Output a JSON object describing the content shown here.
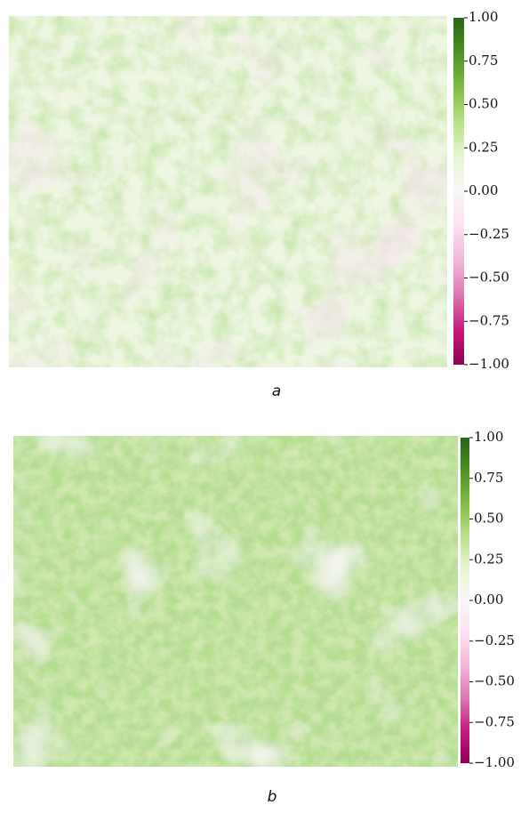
{
  "chart_data": [
    {
      "type": "heatmap",
      "caption": "a",
      "ylim": [
        -1,
        1
      ],
      "yticks": [
        {
          "value": -1,
          "label": "−1.00"
        },
        {
          "value": -0.75,
          "label": "−0.75"
        },
        {
          "value": -0.5,
          "label": "−0.50"
        },
        {
          "value": -0.25,
          "label": "−0.25"
        },
        {
          "value": 0,
          "label": "0.00"
        },
        {
          "value": 0.25,
          "label": "0.25"
        },
        {
          "value": 0.5,
          "label": "0.50"
        },
        {
          "value": 0.75,
          "label": "0.75"
        },
        {
          "value": 1,
          "label": "1.00"
        }
      ],
      "colormap": [
        "#8e0152",
        "#c51b7d",
        "#de77ae",
        "#f1b6da",
        "#fde0ef",
        "#f7f7f7",
        "#e6f5d0",
        "#b8e186",
        "#7fbc41",
        "#4d9221",
        "#276419"
      ]
    },
    {
      "type": "heatmap",
      "caption": "b",
      "ylim": [
        -1,
        1
      ],
      "yticks": [
        {
          "value": -1,
          "label": "−1.00"
        },
        {
          "value": -0.75,
          "label": "−0.75"
        },
        {
          "value": -0.5,
          "label": "−0.50"
        },
        {
          "value": -0.25,
          "label": "−0.25"
        },
        {
          "value": 0,
          "label": "0.00"
        },
        {
          "value": 0.25,
          "label": "0.25"
        },
        {
          "value": 0.5,
          "label": "0.50"
        },
        {
          "value": 0.75,
          "label": "0.75"
        },
        {
          "value": 1,
          "label": "1.00"
        }
      ],
      "colormap": [
        "#8e0152",
        "#c51b7d",
        "#de77ae",
        "#f1b6da",
        "#fde0ef",
        "#f7f7f7",
        "#e6f5d0",
        "#b8e186",
        "#7fbc41",
        "#4d9221",
        "#276419"
      ]
    }
  ]
}
